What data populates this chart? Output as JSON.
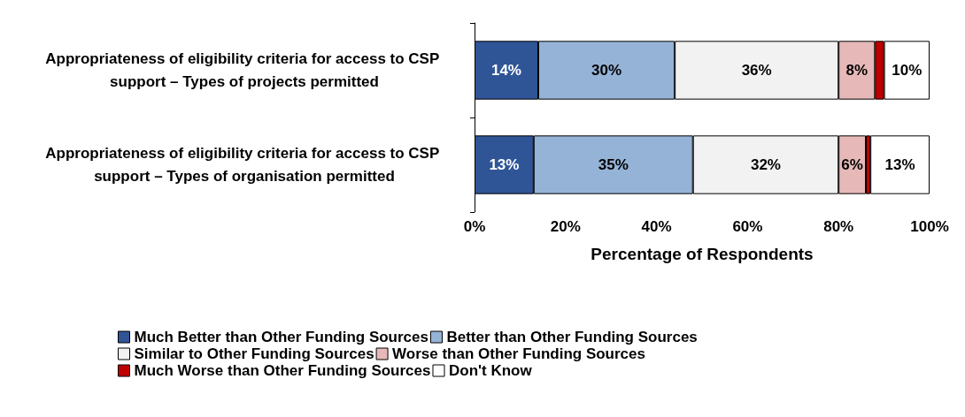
{
  "chart_data": {
    "type": "bar",
    "orientation": "horizontal",
    "stacked": true,
    "xlabel": "Percentage of Respondents",
    "categories": [
      "Appropriateness of eligibility criteria for access to CSP support – Types of projects permitted",
      "Appropriateness of eligibility criteria for access to CSP support – Types of organisation permitted"
    ],
    "series": [
      {
        "name": "Much Better than Other Funding Sources",
        "color": "#2f5597",
        "values": [
          14,
          13
        ],
        "value_labels": [
          "14%",
          "13%"
        ]
      },
      {
        "name": "Better than Other Funding Sources",
        "color": "#95b3d7",
        "values": [
          30,
          35
        ],
        "value_labels": [
          "30%",
          "35%"
        ]
      },
      {
        "name": "Similar to Other Funding Sources",
        "color": "#f2f2f2",
        "values": [
          36,
          32
        ],
        "value_labels": [
          "36%",
          "32%"
        ]
      },
      {
        "name": "Worse than Other Funding Sources",
        "color": "#e6b9b8",
        "values": [
          8,
          6
        ],
        "value_labels": [
          "8%",
          "6%"
        ]
      },
      {
        "name": "Much Worse than Other Funding Sources",
        "color": "#c00000",
        "values": [
          2,
          1
        ],
        "value_labels": [
          null,
          null
        ]
      },
      {
        "name": "Don't Know",
        "color": "#ffffff",
        "values": [
          10,
          13
        ],
        "value_labels": [
          "10%",
          "13%"
        ]
      }
    ],
    "xlim": [
      0,
      100
    ],
    "xticks": [
      {
        "value": 0,
        "label": "0%"
      },
      {
        "value": 20,
        "label": "20%"
      },
      {
        "value": 40,
        "label": "40%"
      },
      {
        "value": 60,
        "label": "60%"
      },
      {
        "value": 80,
        "label": "80%"
      },
      {
        "value": 100,
        "label": "100%"
      }
    ],
    "grid": false,
    "legend": "bottom"
  }
}
